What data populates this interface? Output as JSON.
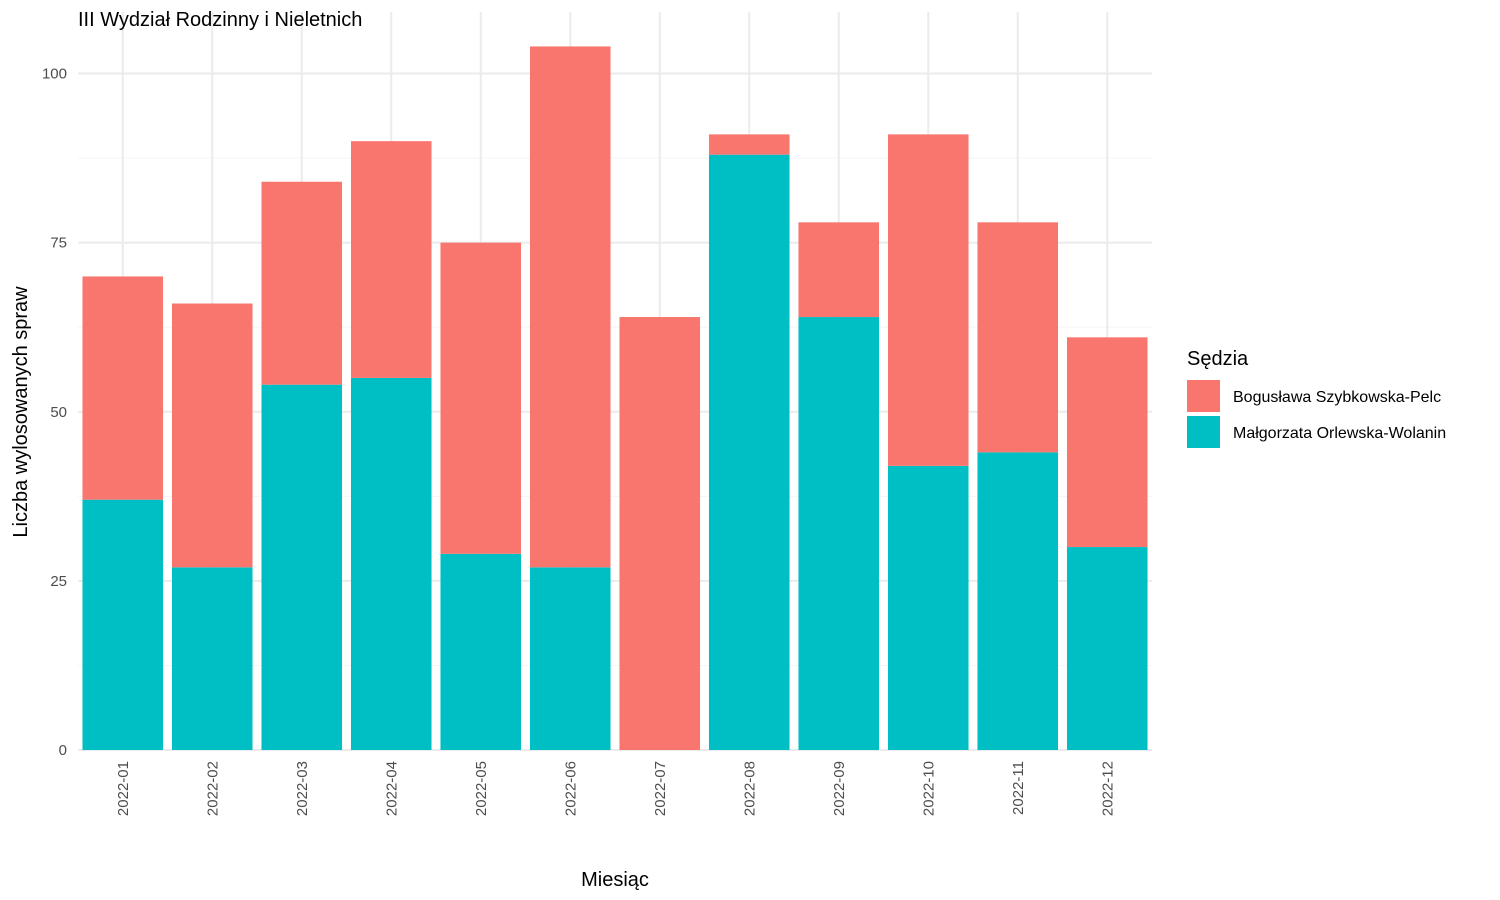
{
  "chart_data": {
    "type": "bar",
    "stacked": true,
    "title": "III Wydział Rodzinny i Nieletnich",
    "xlabel": "Miesiąc",
    "ylabel": "Liczba wylosowanych spraw",
    "ylim": [
      0,
      105
    ],
    "yticks": [
      0,
      25,
      50,
      75,
      100
    ],
    "grid": true,
    "legend_title": "Sędzia",
    "legend_position": "right",
    "categories": [
      "2022-01",
      "2022-02",
      "2022-03",
      "2022-04",
      "2022-05",
      "2022-06",
      "2022-07",
      "2022-08",
      "2022-09",
      "2022-10",
      "2022-11",
      "2022-12"
    ],
    "series": [
      {
        "name": "Małgorzata Orlewska-Wolanin",
        "color": "#00BFC4",
        "values": [
          37,
          27,
          54,
          55,
          29,
          27,
          0,
          88,
          64,
          42,
          44,
          30
        ]
      },
      {
        "name": "Bogusława Szybkowska-Pelc",
        "color": "#F8766D",
        "values": [
          33,
          39,
          30,
          35,
          46,
          77,
          64,
          3,
          14,
          49,
          34,
          31
        ]
      }
    ],
    "legend_order": [
      1,
      0
    ]
  }
}
